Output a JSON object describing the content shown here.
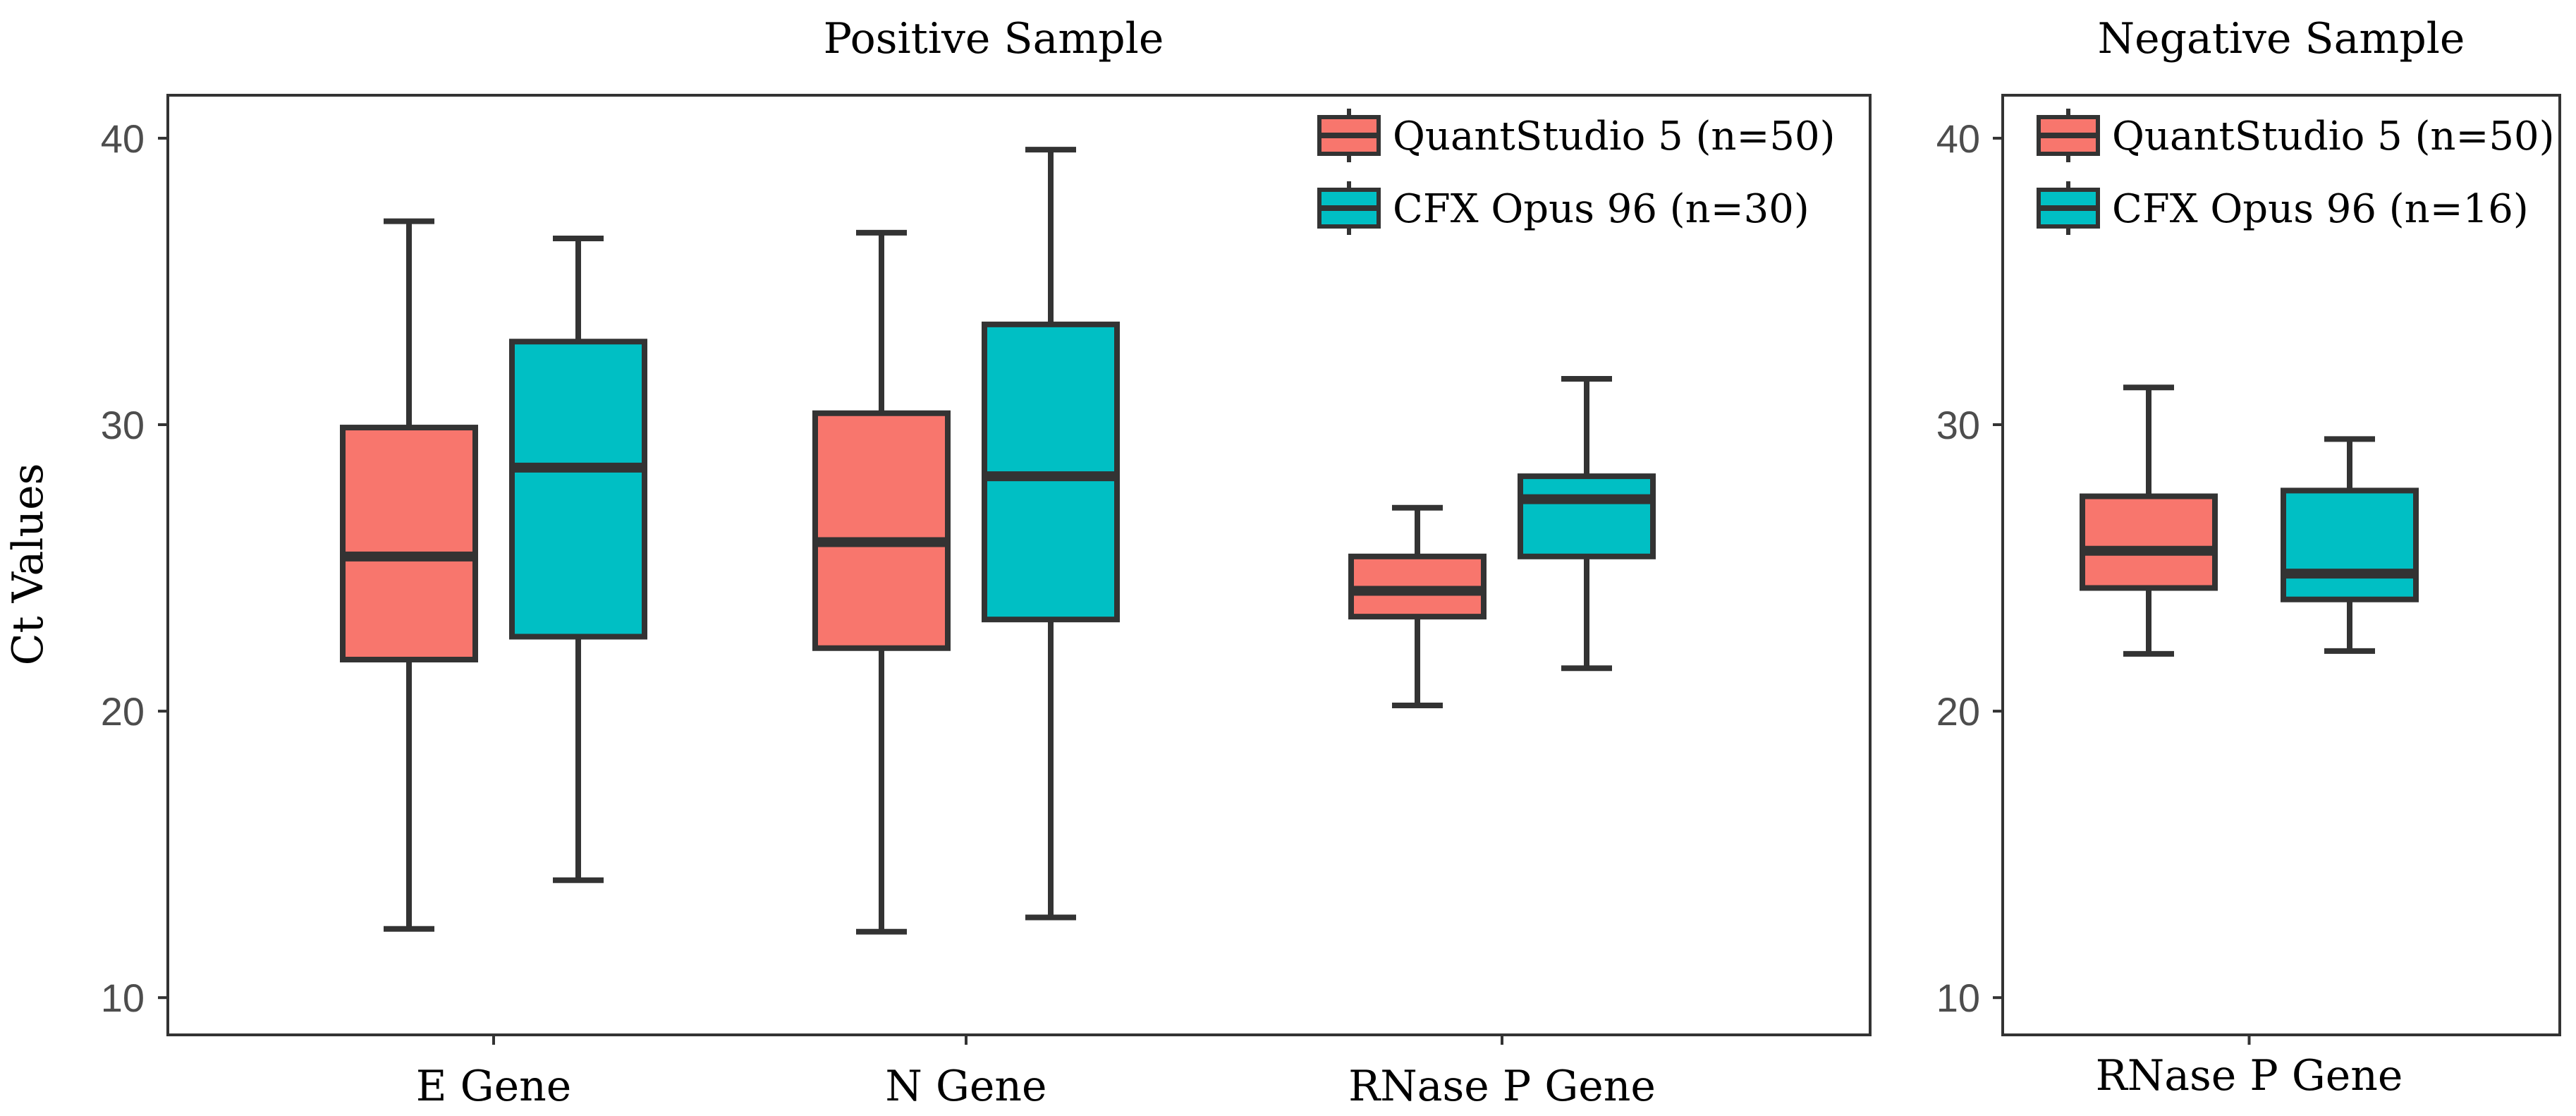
{
  "colors": {
    "quantstudio": "#F8766D",
    "cfx": "#00BFC4",
    "stroke": "#333333",
    "axis_text": "#4D4D4D",
    "text": "#000000"
  },
  "chart_data": [
    {
      "type": "box",
      "title": "Positive Sample",
      "ylabel": "Ct Values",
      "xlabel": "",
      "ylim": [
        8.7,
        41.5
      ],
      "yticks": [
        10,
        20,
        30,
        40
      ],
      "ytick_labels": [
        "10",
        "20",
        "30",
        "40"
      ],
      "categories": [
        "E Gene",
        "N Gene",
        "RNase P Gene"
      ],
      "legend": {
        "position": "top-right",
        "entries": [
          "QuantStudio 5 (n=50)",
          "CFX Opus 96 (n=30)"
        ]
      },
      "series": [
        {
          "name": "QuantStudio 5",
          "color": "#F8766D",
          "boxes": [
            {
              "category": "E Gene",
              "min": 12.4,
              "q1": 21.8,
              "median": 25.4,
              "q3": 29.9,
              "max": 37.1
            },
            {
              "category": "N Gene",
              "min": 12.3,
              "q1": 22.2,
              "median": 25.9,
              "q3": 30.4,
              "max": 36.7
            },
            {
              "category": "RNase P Gene",
              "min": 20.2,
              "q1": 23.3,
              "median": 24.2,
              "q3": 25.4,
              "max": 27.1
            }
          ]
        },
        {
          "name": "CFX Opus 96",
          "color": "#00BFC4",
          "boxes": [
            {
              "category": "E Gene",
              "min": 14.1,
              "q1": 22.6,
              "median": 28.5,
              "q3": 32.9,
              "max": 36.5
            },
            {
              "category": "N Gene",
              "min": 12.8,
              "q1": 23.2,
              "median": 28.2,
              "q3": 33.5,
              "max": 39.6
            },
            {
              "category": "RNase P Gene",
              "min": 21.5,
              "q1": 25.4,
              "median": 27.4,
              "q3": 28.2,
              "max": 31.6
            }
          ]
        }
      ]
    },
    {
      "type": "box",
      "title": "Negative Sample",
      "ylabel": "",
      "xlabel": "",
      "ylim": [
        8.7,
        41.5
      ],
      "yticks": [
        10,
        20,
        30,
        40
      ],
      "ytick_labels": [
        "10",
        "20",
        "30",
        "40"
      ],
      "categories": [
        "RNase P Gene"
      ],
      "legend": {
        "position": "top-left",
        "entries": [
          "QuantStudio 5 (n=50)",
          "CFX Opus 96 (n=16)"
        ]
      },
      "series": [
        {
          "name": "QuantStudio 5",
          "color": "#F8766D",
          "boxes": [
            {
              "category": "RNase P Gene",
              "min": 22.0,
              "q1": 24.3,
              "median": 25.6,
              "q3": 27.5,
              "max": 31.3
            }
          ]
        },
        {
          "name": "CFX Opus 96",
          "color": "#00BFC4",
          "boxes": [
            {
              "category": "RNase P Gene",
              "min": 22.1,
              "q1": 23.9,
              "median": 24.8,
              "q3": 27.7,
              "max": 29.5
            }
          ]
        }
      ]
    }
  ]
}
